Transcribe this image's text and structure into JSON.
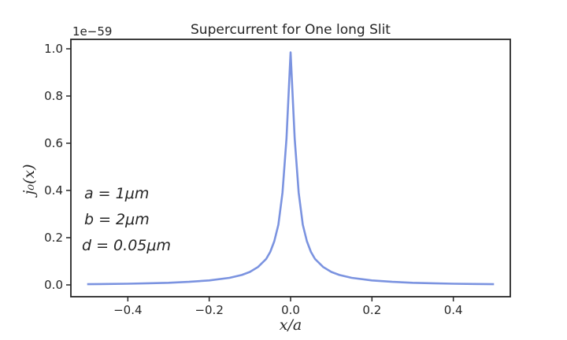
{
  "chart_data": {
    "type": "line",
    "title": "Supercurrent for One long Slit",
    "xlabel": "x/a",
    "ylabel": "j₀(x)",
    "offset_text": "1e−59",
    "xlim": [
      -0.54,
      0.54
    ],
    "ylim": [
      -0.05,
      1.04
    ],
    "x_ticks": [
      -0.4,
      -0.2,
      0.0,
      0.2,
      0.4
    ],
    "x_tick_labels": [
      "−0.4",
      "−0.2",
      "0.0",
      "0.2",
      "0.4"
    ],
    "y_ticks": [
      0.0,
      0.2,
      0.4,
      0.6,
      0.8,
      1.0
    ],
    "y_tick_labels": [
      "0.0",
      "0.2",
      "0.4",
      "0.6",
      "0.8",
      "1.0"
    ],
    "grid": false,
    "annotations": [
      "a = 1μm",
      "b = 2μm",
      "d = 0.05μm"
    ],
    "series": [
      {
        "color": "#7b93e0",
        "x": [
          -0.5,
          -0.45,
          -0.4,
          -0.35,
          -0.3,
          -0.25,
          -0.2,
          -0.15,
          -0.12,
          -0.1,
          -0.08,
          -0.06,
          -0.05,
          -0.04,
          -0.03,
          -0.02,
          -0.01,
          0.0,
          0.01,
          0.02,
          0.03,
          0.04,
          0.05,
          0.06,
          0.08,
          0.1,
          0.12,
          0.15,
          0.2,
          0.25,
          0.3,
          0.35,
          0.4,
          0.45,
          0.5
        ],
        "y": [
          0.003,
          0.004,
          0.005,
          0.007,
          0.009,
          0.013,
          0.019,
          0.03,
          0.042,
          0.055,
          0.076,
          0.11,
          0.14,
          0.185,
          0.255,
          0.39,
          0.62,
          0.985,
          0.62,
          0.39,
          0.255,
          0.185,
          0.14,
          0.11,
          0.076,
          0.055,
          0.042,
          0.03,
          0.019,
          0.013,
          0.009,
          0.007,
          0.005,
          0.004,
          0.003
        ]
      }
    ]
  }
}
